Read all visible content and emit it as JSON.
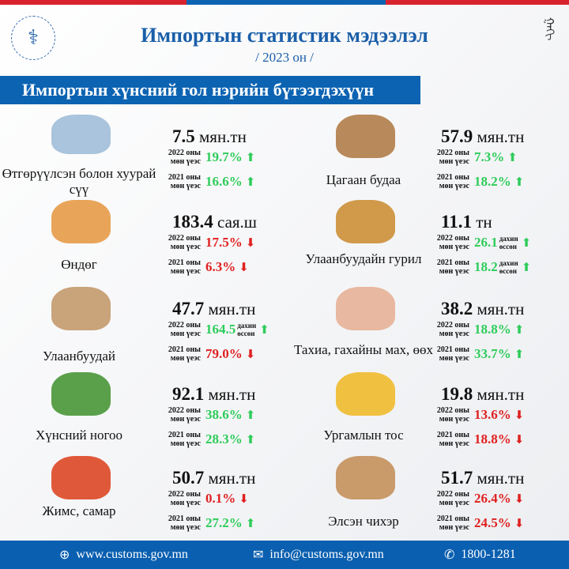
{
  "header": {
    "title": "Импортын статистик мэдээлэл",
    "subtitle": "/ 2023 он /",
    "banner": "Импортын хүнсний гол нэрийн бүтээгдэхүүн"
  },
  "labels": {
    "y2022": "2022 оны\nмөн үеэс",
    "y2021": "2021 оны\nмөн үеэс",
    "times": "дахин\nөссөн"
  },
  "colors": {
    "up": "#2ecc5a",
    "down": "#e02020",
    "brand": "#0c63b2"
  },
  "left": [
    {
      "name": "Өтгөрүүлсэн болон хуурай сүү",
      "value": "7.5",
      "unit": "мян.тн",
      "c2022": {
        "v": "19.7%",
        "dir": "up"
      },
      "c2021": {
        "v": "16.6%",
        "dir": "up"
      }
    },
    {
      "name": "Өндөг",
      "value": "183.4",
      "unit": "сая.ш",
      "c2022": {
        "v": "17.5%",
        "dir": "down"
      },
      "c2021": {
        "v": "6.3%",
        "dir": "down"
      }
    },
    {
      "name": "Улаанбуудай",
      "value": "47.7",
      "unit": "мян.тн",
      "c2022": {
        "v": "164.5",
        "dir": "up",
        "times": true
      },
      "c2021": {
        "v": "79.0%",
        "dir": "down"
      }
    },
    {
      "name": "Хүнсний ногоо",
      "value": "92.1",
      "unit": "мян.тн",
      "c2022": {
        "v": "38.6%",
        "dir": "up"
      },
      "c2021": {
        "v": "28.3%",
        "dir": "up"
      }
    },
    {
      "name": "Жимс, самар",
      "value": "50.7",
      "unit": "мян.тн",
      "c2022": {
        "v": "0.1%",
        "dir": "down"
      },
      "c2021": {
        "v": "27.2%",
        "dir": "up"
      }
    }
  ],
  "right": [
    {
      "name": "Цагаан будаа",
      "value": "57.9",
      "unit": "мян.тн",
      "c2022": {
        "v": "7.3%",
        "dir": "up"
      },
      "c2021": {
        "v": "18.2%",
        "dir": "up"
      }
    },
    {
      "name": "Улаанбуудайн гурил",
      "value": "11.1",
      "unit": "тн",
      "c2022": {
        "v": "26.1",
        "dir": "up",
        "times": true
      },
      "c2021": {
        "v": "18.2",
        "dir": "up",
        "times": true
      }
    },
    {
      "name": "Тахиа, гахайны мах, өөх",
      "value": "38.2",
      "unit": "мян.тн",
      "c2022": {
        "v": "18.8%",
        "dir": "up"
      },
      "c2021": {
        "v": "33.7%",
        "dir": "up"
      }
    },
    {
      "name": "Ургамлын тос",
      "value": "19.8",
      "unit": "мян.тн",
      "c2022": {
        "v": "13.6%",
        "dir": "down"
      },
      "c2021": {
        "v": "18.8%",
        "dir": "down"
      }
    },
    {
      "name": "Элсэн чихэр",
      "value": "51.7",
      "unit": "мян.тн",
      "c2022": {
        "v": "26.4%",
        "dir": "down"
      },
      "c2021": {
        "v": "24.5%",
        "dir": "down"
      }
    }
  ],
  "footer": {
    "web": "www.customs.gov.mn",
    "email": "info@customs.gov.mn",
    "phone": "1800-1281"
  }
}
